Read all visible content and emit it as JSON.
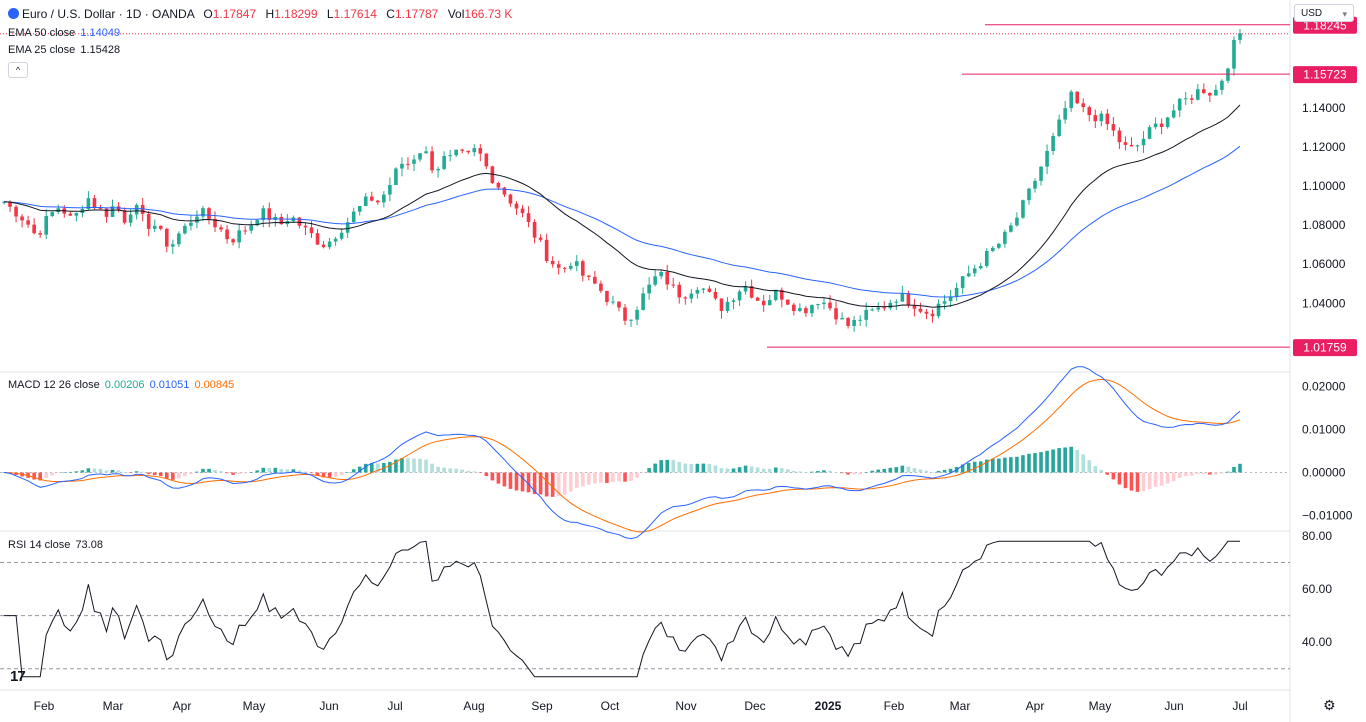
{
  "header": {
    "symbol": "Euro / U.S. Dollar · 1D · OANDA",
    "o_label": "O",
    "o_value": "1.17847",
    "h_label": "H",
    "h_value": "1.18299",
    "l_label": "L",
    "l_value": "1.17614",
    "c_label": "C",
    "c_value": "1.17787",
    "vol_label": "Vol",
    "vol_value": "166.73 K",
    "currency": "USD"
  },
  "indicators": {
    "ema50": {
      "label": "EMA 50 close",
      "value": "1.14049",
      "color": "#2962ff"
    },
    "ema25": {
      "label": "EMA 25 close",
      "value": "1.15428",
      "color": "#131722"
    },
    "macd": {
      "label": "MACD 12 26 close",
      "v1": "0.00206",
      "v2": "0.01051",
      "v3": "0.00845",
      "c1": "#22ab94",
      "c2": "#2962ff",
      "c3": "#ff6d00"
    },
    "rsi": {
      "label": "RSI 14 close",
      "value": "73.08"
    }
  },
  "colors": {
    "up": "#22ab94",
    "down": "#f23645",
    "level": "#e91e63"
  },
  "chart_data": {
    "type": "candlestick",
    "x_ticks": [
      "Feb",
      "Mar",
      "Apr",
      "May",
      "Jun",
      "Jul",
      "Aug",
      "Sep",
      "Oct",
      "Nov",
      "Dec",
      "2025",
      "Feb",
      "Mar",
      "Apr",
      "May",
      "Jun",
      "Jul"
    ],
    "price_axis": {
      "ticks": [
        "1.14000",
        "1.12000",
        "1.10000",
        "1.08000",
        "1.06000",
        "1.04000"
      ],
      "range": [
        1.01,
        1.19
      ],
      "levels": [
        {
          "label": "1.18245",
          "value": 1.18245
        },
        {
          "label": "1.15723",
          "value": 1.15723
        },
        {
          "label": "1.01759",
          "value": 1.01759
        }
      ]
    },
    "close_series": [
      [
        0,
        1.094
      ],
      [
        10,
        1.089
      ],
      [
        18,
        1.086
      ],
      [
        26,
        1.082
      ],
      [
        32,
        1.078
      ],
      [
        36,
        1.074
      ],
      [
        44,
        1.081
      ],
      [
        52,
        1.086
      ],
      [
        60,
        1.09
      ],
      [
        66,
        1.086
      ],
      [
        72,
        1.082
      ],
      [
        80,
        1.088
      ],
      [
        86,
        1.095
      ],
      [
        92,
        1.092
      ],
      [
        98,
        1.088
      ],
      [
        106,
        1.086
      ],
      [
        114,
        1.09
      ],
      [
        120,
        1.087
      ],
      [
        126,
        1.082
      ],
      [
        132,
        1.09
      ],
      [
        140,
        1.086
      ],
      [
        146,
        1.079
      ],
      [
        152,
        1.082
      ],
      [
        160,
        1.076
      ],
      [
        166,
        1.071
      ],
      [
        172,
        1.07
      ],
      [
        178,
        1.075
      ],
      [
        184,
        1.078
      ],
      [
        190,
        1.082
      ],
      [
        198,
        1.087
      ],
      [
        206,
        1.085
      ],
      [
        214,
        1.081
      ],
      [
        222,
        1.077
      ],
      [
        230,
        1.072
      ],
      [
        240,
        1.076
      ],
      [
        250,
        1.08
      ],
      [
        260,
        1.087
      ],
      [
        270,
        1.084
      ],
      [
        280,
        1.08
      ],
      [
        290,
        1.085
      ],
      [
        298,
        1.081
      ],
      [
        306,
        1.077
      ],
      [
        314,
        1.074
      ],
      [
        322,
        1.07
      ],
      [
        330,
        1.072
      ],
      [
        338,
        1.077
      ],
      [
        346,
        1.081
      ],
      [
        354,
        1.086
      ],
      [
        362,
        1.09
      ],
      [
        370,
        1.094
      ],
      [
        378,
        1.092
      ],
      [
        386,
        1.097
      ],
      [
        392,
        1.103
      ],
      [
        398,
        1.109
      ],
      [
        404,
        1.113
      ],
      [
        410,
        1.111
      ],
      [
        416,
        1.117
      ],
      [
        422,
        1.119
      ],
      [
        428,
        1.115
      ],
      [
        434,
        1.108
      ],
      [
        440,
        1.111
      ],
      [
        446,
        1.115
      ],
      [
        452,
        1.113
      ],
      [
        458,
        1.117
      ],
      [
        466,
        1.114
      ],
      [
        474,
        1.118
      ],
      [
        480,
        1.116
      ],
      [
        486,
        1.11
      ],
      [
        494,
        1.103
      ],
      [
        502,
        1.098
      ],
      [
        510,
        1.093
      ],
      [
        520,
        1.087
      ],
      [
        530,
        1.079
      ],
      [
        538,
        1.072
      ],
      [
        546,
        1.065
      ],
      [
        554,
        1.06
      ],
      [
        562,
        1.056
      ],
      [
        570,
        1.062
      ],
      [
        578,
        1.058
      ],
      [
        586,
        1.052
      ],
      [
        594,
        1.05
      ],
      [
        602,
        1.046
      ],
      [
        610,
        1.041
      ],
      [
        618,
        1.036
      ],
      [
        626,
        1.032
      ],
      [
        634,
        1.036
      ],
      [
        642,
        1.043
      ],
      [
        650,
        1.049
      ],
      [
        658,
        1.055
      ],
      [
        666,
        1.052
      ],
      [
        674,
        1.047
      ],
      [
        682,
        1.044
      ],
      [
        690,
        1.047
      ],
      [
        698,
        1.05
      ],
      [
        706,
        1.046
      ],
      [
        714,
        1.041
      ],
      [
        722,
        1.038
      ],
      [
        730,
        1.042
      ],
      [
        738,
        1.047
      ],
      [
        746,
        1.049
      ],
      [
        754,
        1.044
      ],
      [
        762,
        1.04
      ],
      [
        770,
        1.043
      ],
      [
        778,
        1.046
      ],
      [
        786,
        1.042
      ],
      [
        794,
        1.039
      ],
      [
        802,
        1.036
      ],
      [
        810,
        1.039
      ],
      [
        818,
        1.042
      ],
      [
        826,
        1.04
      ],
      [
        834,
        1.036
      ],
      [
        842,
        1.031
      ],
      [
        850,
        1.028
      ],
      [
        858,
        1.032
      ],
      [
        866,
        1.034
      ],
      [
        874,
        1.036
      ],
      [
        882,
        1.038
      ],
      [
        890,
        1.041
      ],
      [
        898,
        1.044
      ],
      [
        906,
        1.042
      ],
      [
        914,
        1.04
      ],
      [
        922,
        1.037
      ],
      [
        930,
        1.035
      ],
      [
        938,
        1.039
      ],
      [
        946,
        1.042
      ],
      [
        954,
        1.046
      ],
      [
        962,
        1.051
      ],
      [
        970,
        1.056
      ],
      [
        978,
        1.06
      ],
      [
        986,
        1.064
      ],
      [
        994,
        1.068
      ],
      [
        1002,
        1.072
      ],
      [
        1010,
        1.078
      ],
      [
        1018,
        1.085
      ],
      [
        1026,
        1.093
      ],
      [
        1034,
        1.102
      ],
      [
        1042,
        1.111
      ],
      [
        1050,
        1.12
      ],
      [
        1058,
        1.13
      ],
      [
        1064,
        1.138
      ],
      [
        1070,
        1.146
      ],
      [
        1078,
        1.141
      ],
      [
        1086,
        1.137
      ],
      [
        1094,
        1.136
      ],
      [
        1102,
        1.134
      ],
      [
        1110,
        1.13
      ],
      [
        1118,
        1.124
      ],
      [
        1124,
        1.12
      ],
      [
        1130,
        1.118
      ],
      [
        1138,
        1.121
      ],
      [
        1146,
        1.126
      ],
      [
        1154,
        1.13
      ],
      [
        1162,
        1.133
      ],
      [
        1170,
        1.137
      ],
      [
        1178,
        1.141
      ],
      [
        1186,
        1.144
      ],
      [
        1194,
        1.147
      ],
      [
        1202,
        1.15
      ],
      [
        1210,
        1.148
      ],
      [
        1216,
        1.149
      ],
      [
        1222,
        1.155
      ],
      [
        1228,
        1.163
      ],
      [
        1234,
        1.172
      ],
      [
        1240,
        1.178
      ]
    ],
    "macd_zero": 0,
    "rsi_levels": [
      70,
      50,
      30
    ]
  }
}
